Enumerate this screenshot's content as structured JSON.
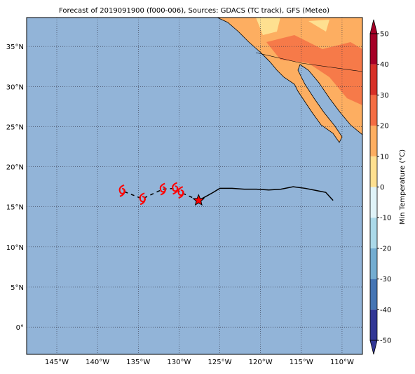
{
  "chart_data": {
    "type": "map",
    "title": "Forecast of 2019091900 (f000-006), Sources: GDACS (TC track), GFS (Meteo)",
    "xlim": [
      -148.7,
      -107.5
    ],
    "ylim": [
      -3.4,
      38.6
    ],
    "xticks": [
      {
        "value": -145,
        "label": "145°W"
      },
      {
        "value": -140,
        "label": "140°W"
      },
      {
        "value": -135,
        "label": "135°W"
      },
      {
        "value": -130,
        "label": "130°W"
      },
      {
        "value": -125,
        "label": "125°W"
      },
      {
        "value": -120,
        "label": "120°W"
      },
      {
        "value": -115,
        "label": "115°W"
      },
      {
        "value": -110,
        "label": "110°W"
      }
    ],
    "yticks": [
      {
        "value": 0,
        "label": "0°"
      },
      {
        "value": 5,
        "label": "5°N"
      },
      {
        "value": 10,
        "label": "10°N"
      },
      {
        "value": 15,
        "label": "15°N"
      },
      {
        "value": 20,
        "label": "20°N"
      },
      {
        "value": 25,
        "label": "25°N"
      },
      {
        "value": 30,
        "label": "30°N"
      },
      {
        "value": 35,
        "label": "35°N"
      }
    ],
    "grid": true,
    "track": {
      "x": [
        -127.6,
        -126.5,
        -125.8,
        -125.0,
        -123.5,
        -122.0,
        -120.5,
        -119.0,
        -117.5,
        -116.0,
        -114.5,
        -113.0,
        -112.0,
        -111.1
      ],
      "y": [
        15.8,
        16.4,
        16.8,
        17.3,
        17.3,
        17.2,
        17.2,
        17.1,
        17.2,
        17.5,
        17.3,
        17.0,
        16.8,
        15.8
      ],
      "color": "#000000"
    },
    "forecast": {
      "x": [
        -127.6,
        -129.8,
        -130.5,
        -132.0,
        -134.5,
        -137.0
      ],
      "y": [
        15.8,
        16.8,
        17.3,
        17.2,
        16.0,
        17.0
      ],
      "color": "#ff0000"
    },
    "colorbar": {
      "label": "Min Temperature (°C)",
      "lim": [
        -50,
        50
      ],
      "ticks": [
        50,
        40,
        30,
        20,
        10,
        0,
        -10,
        -20,
        -30,
        -40,
        -50
      ],
      "colors": [
        "#313695",
        "#4575b4",
        "#74add1",
        "#abd9e9",
        "#e0f3f8",
        "#fee090",
        "#fdae61",
        "#f46d43",
        "#d73027",
        "#a50026"
      ]
    }
  }
}
